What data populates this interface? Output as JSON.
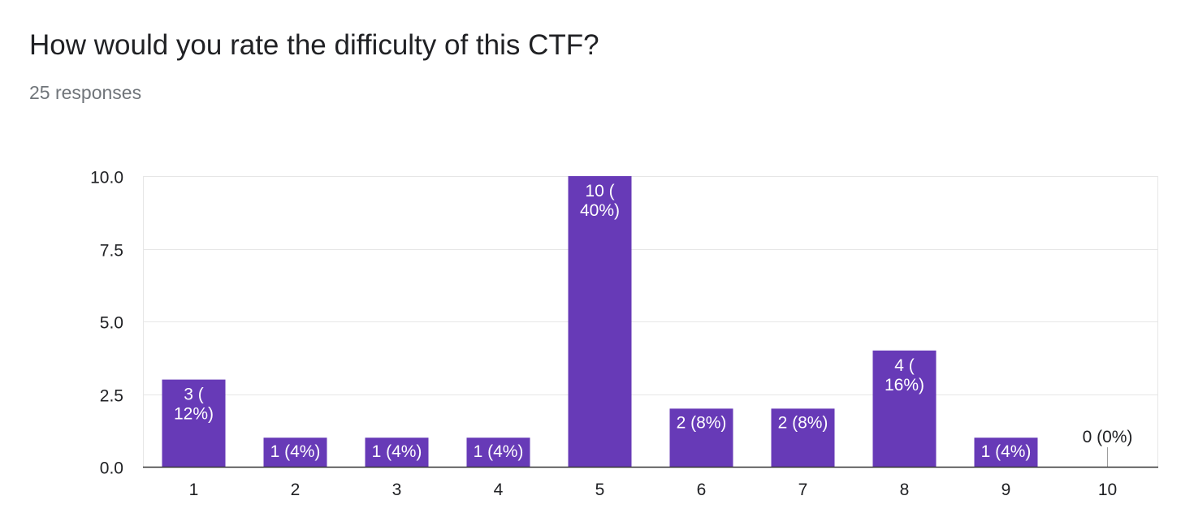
{
  "question": {
    "title": "How would you rate the difficulty of this CTF?",
    "responses": "25 responses"
  },
  "chart_data": {
    "type": "bar",
    "categories": [
      "1",
      "2",
      "3",
      "4",
      "5",
      "6",
      "7",
      "8",
      "9",
      "10"
    ],
    "values": [
      3,
      1,
      1,
      1,
      10,
      2,
      2,
      4,
      1,
      0
    ],
    "data_labels": [
      [
        "3 (",
        "12%)"
      ],
      [
        "1 (4%)"
      ],
      [
        "1 (4%)"
      ],
      [
        "1 (4%)"
      ],
      [
        "10 (",
        "40%)"
      ],
      [
        "2 (8%)"
      ],
      [
        "2 (8%)"
      ],
      [
        "4 (",
        "16%)"
      ],
      [
        "1 (4%)"
      ],
      [
        "0 (0%)"
      ]
    ],
    "y_ticks": [
      "0.0",
      "2.5",
      "5.0",
      "7.5",
      "10.0"
    ],
    "y_tick_values": [
      0,
      2.5,
      5,
      7.5,
      10
    ],
    "ylim": [
      0,
      10
    ],
    "grid": true,
    "bar_color": "#673ab7",
    "label_color_inside": "#ffffff",
    "label_color_outside": "#202124"
  }
}
